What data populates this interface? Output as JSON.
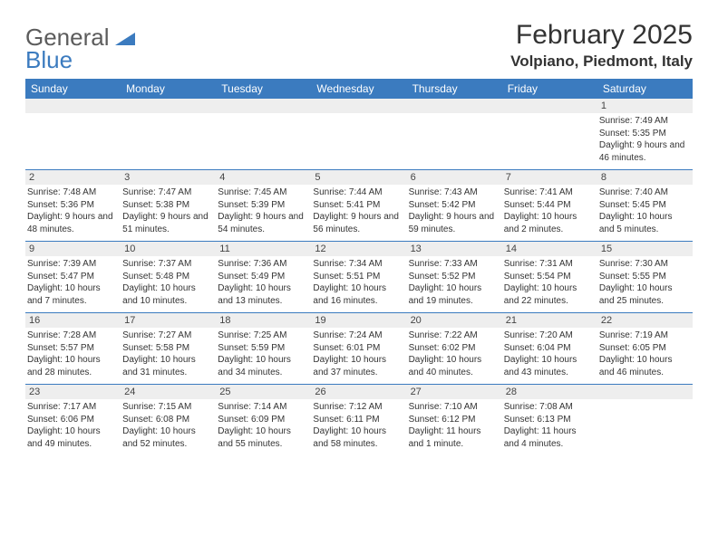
{
  "logo": {
    "general": "General",
    "blue": "Blue"
  },
  "colors": {
    "accent": "#3b7bbf",
    "daynum_bg": "#eeeeee",
    "text": "#333333"
  },
  "title": "February 2025",
  "location": "Volpiano, Piedmont, Italy",
  "weekdays": [
    "Sunday",
    "Monday",
    "Tuesday",
    "Wednesday",
    "Thursday",
    "Friday",
    "Saturday"
  ],
  "weeks": [
    [
      {
        "day": "",
        "sunrise": "",
        "sunset": "",
        "daylight": ""
      },
      {
        "day": "",
        "sunrise": "",
        "sunset": "",
        "daylight": ""
      },
      {
        "day": "",
        "sunrise": "",
        "sunset": "",
        "daylight": ""
      },
      {
        "day": "",
        "sunrise": "",
        "sunset": "",
        "daylight": ""
      },
      {
        "day": "",
        "sunrise": "",
        "sunset": "",
        "daylight": ""
      },
      {
        "day": "",
        "sunrise": "",
        "sunset": "",
        "daylight": ""
      },
      {
        "day": "1",
        "sunrise": "Sunrise: 7:49 AM",
        "sunset": "Sunset: 5:35 PM",
        "daylight": "Daylight: 9 hours and 46 minutes."
      }
    ],
    [
      {
        "day": "2",
        "sunrise": "Sunrise: 7:48 AM",
        "sunset": "Sunset: 5:36 PM",
        "daylight": "Daylight: 9 hours and 48 minutes."
      },
      {
        "day": "3",
        "sunrise": "Sunrise: 7:47 AM",
        "sunset": "Sunset: 5:38 PM",
        "daylight": "Daylight: 9 hours and 51 minutes."
      },
      {
        "day": "4",
        "sunrise": "Sunrise: 7:45 AM",
        "sunset": "Sunset: 5:39 PM",
        "daylight": "Daylight: 9 hours and 54 minutes."
      },
      {
        "day": "5",
        "sunrise": "Sunrise: 7:44 AM",
        "sunset": "Sunset: 5:41 PM",
        "daylight": "Daylight: 9 hours and 56 minutes."
      },
      {
        "day": "6",
        "sunrise": "Sunrise: 7:43 AM",
        "sunset": "Sunset: 5:42 PM",
        "daylight": "Daylight: 9 hours and 59 minutes."
      },
      {
        "day": "7",
        "sunrise": "Sunrise: 7:41 AM",
        "sunset": "Sunset: 5:44 PM",
        "daylight": "Daylight: 10 hours and 2 minutes."
      },
      {
        "day": "8",
        "sunrise": "Sunrise: 7:40 AM",
        "sunset": "Sunset: 5:45 PM",
        "daylight": "Daylight: 10 hours and 5 minutes."
      }
    ],
    [
      {
        "day": "9",
        "sunrise": "Sunrise: 7:39 AM",
        "sunset": "Sunset: 5:47 PM",
        "daylight": "Daylight: 10 hours and 7 minutes."
      },
      {
        "day": "10",
        "sunrise": "Sunrise: 7:37 AM",
        "sunset": "Sunset: 5:48 PM",
        "daylight": "Daylight: 10 hours and 10 minutes."
      },
      {
        "day": "11",
        "sunrise": "Sunrise: 7:36 AM",
        "sunset": "Sunset: 5:49 PM",
        "daylight": "Daylight: 10 hours and 13 minutes."
      },
      {
        "day": "12",
        "sunrise": "Sunrise: 7:34 AM",
        "sunset": "Sunset: 5:51 PM",
        "daylight": "Daylight: 10 hours and 16 minutes."
      },
      {
        "day": "13",
        "sunrise": "Sunrise: 7:33 AM",
        "sunset": "Sunset: 5:52 PM",
        "daylight": "Daylight: 10 hours and 19 minutes."
      },
      {
        "day": "14",
        "sunrise": "Sunrise: 7:31 AM",
        "sunset": "Sunset: 5:54 PM",
        "daylight": "Daylight: 10 hours and 22 minutes."
      },
      {
        "day": "15",
        "sunrise": "Sunrise: 7:30 AM",
        "sunset": "Sunset: 5:55 PM",
        "daylight": "Daylight: 10 hours and 25 minutes."
      }
    ],
    [
      {
        "day": "16",
        "sunrise": "Sunrise: 7:28 AM",
        "sunset": "Sunset: 5:57 PM",
        "daylight": "Daylight: 10 hours and 28 minutes."
      },
      {
        "day": "17",
        "sunrise": "Sunrise: 7:27 AM",
        "sunset": "Sunset: 5:58 PM",
        "daylight": "Daylight: 10 hours and 31 minutes."
      },
      {
        "day": "18",
        "sunrise": "Sunrise: 7:25 AM",
        "sunset": "Sunset: 5:59 PM",
        "daylight": "Daylight: 10 hours and 34 minutes."
      },
      {
        "day": "19",
        "sunrise": "Sunrise: 7:24 AM",
        "sunset": "Sunset: 6:01 PM",
        "daylight": "Daylight: 10 hours and 37 minutes."
      },
      {
        "day": "20",
        "sunrise": "Sunrise: 7:22 AM",
        "sunset": "Sunset: 6:02 PM",
        "daylight": "Daylight: 10 hours and 40 minutes."
      },
      {
        "day": "21",
        "sunrise": "Sunrise: 7:20 AM",
        "sunset": "Sunset: 6:04 PM",
        "daylight": "Daylight: 10 hours and 43 minutes."
      },
      {
        "day": "22",
        "sunrise": "Sunrise: 7:19 AM",
        "sunset": "Sunset: 6:05 PM",
        "daylight": "Daylight: 10 hours and 46 minutes."
      }
    ],
    [
      {
        "day": "23",
        "sunrise": "Sunrise: 7:17 AM",
        "sunset": "Sunset: 6:06 PM",
        "daylight": "Daylight: 10 hours and 49 minutes."
      },
      {
        "day": "24",
        "sunrise": "Sunrise: 7:15 AM",
        "sunset": "Sunset: 6:08 PM",
        "daylight": "Daylight: 10 hours and 52 minutes."
      },
      {
        "day": "25",
        "sunrise": "Sunrise: 7:14 AM",
        "sunset": "Sunset: 6:09 PM",
        "daylight": "Daylight: 10 hours and 55 minutes."
      },
      {
        "day": "26",
        "sunrise": "Sunrise: 7:12 AM",
        "sunset": "Sunset: 6:11 PM",
        "daylight": "Daylight: 10 hours and 58 minutes."
      },
      {
        "day": "27",
        "sunrise": "Sunrise: 7:10 AM",
        "sunset": "Sunset: 6:12 PM",
        "daylight": "Daylight: 11 hours and 1 minute."
      },
      {
        "day": "28",
        "sunrise": "Sunrise: 7:08 AM",
        "sunset": "Sunset: 6:13 PM",
        "daylight": "Daylight: 11 hours and 4 minutes."
      },
      {
        "day": "",
        "sunrise": "",
        "sunset": "",
        "daylight": ""
      }
    ]
  ]
}
